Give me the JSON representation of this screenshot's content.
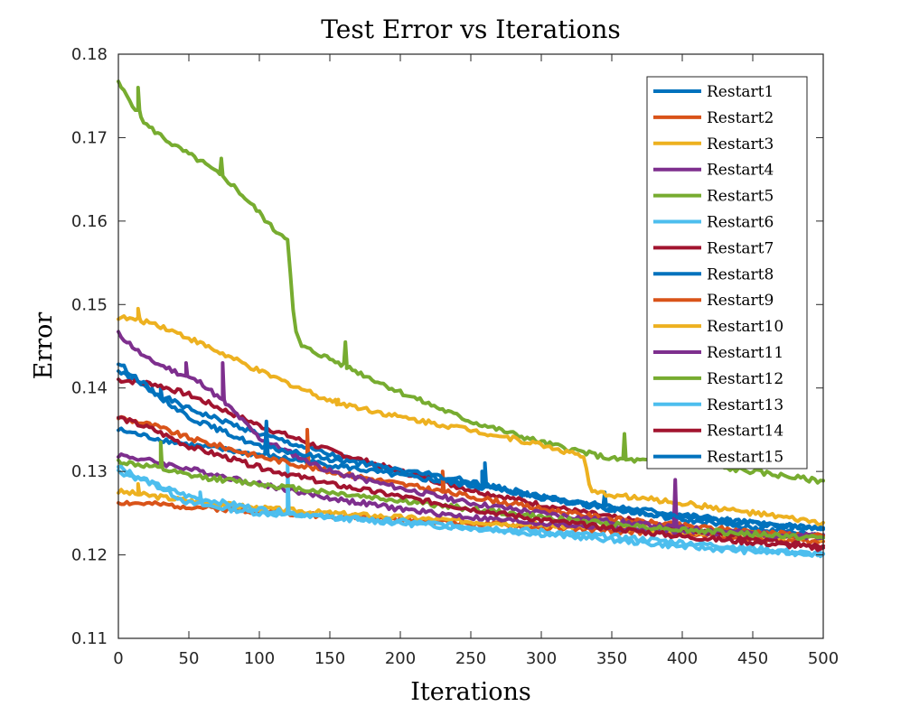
{
  "chart_data": {
    "type": "line",
    "title": "Test Error vs Iterations",
    "xlabel": "Iterations",
    "ylabel": "Error",
    "xlim": [
      0,
      500
    ],
    "ylim": [
      0.11,
      0.18
    ],
    "xticks": [
      0,
      50,
      100,
      150,
      200,
      250,
      300,
      350,
      400,
      450,
      500
    ],
    "yticks": [
      0.11,
      0.12,
      0.13,
      0.14,
      0.15,
      0.16,
      0.17,
      0.18
    ],
    "xtick_labels": [
      "0",
      "50",
      "100",
      "150",
      "200",
      "250",
      "300",
      "350",
      "400",
      "450",
      "500"
    ],
    "ytick_labels": [
      "0.11",
      "0.12",
      "0.13",
      "0.14",
      "0.15",
      "0.16",
      "0.17",
      "0.18"
    ],
    "grid": false,
    "legend_position": "top-right",
    "series": [
      {
        "name": "Restart1",
        "color": "#0072BD",
        "x": [
          0,
          25,
          50,
          100,
          150,
          200,
          250,
          300,
          350,
          400,
          450,
          500
        ],
        "y": [
          0.142,
          0.1395,
          0.1375,
          0.1345,
          0.132,
          0.13,
          0.1285,
          0.1268,
          0.1255,
          0.1242,
          0.1232,
          0.1223
        ],
        "spikes": [
          [
            30,
            0.14
          ],
          [
            260,
            0.131
          ]
        ]
      },
      {
        "name": "Restart2",
        "color": "#D95319",
        "x": [
          0,
          50,
          100,
          150,
          200,
          250,
          300,
          350,
          400,
          450,
          500
        ],
        "y": [
          0.1263,
          0.1258,
          0.1252,
          0.1247,
          0.1242,
          0.1238,
          0.1233,
          0.1229,
          0.1225,
          0.122,
          0.1215
        ]
      },
      {
        "name": "Restart3",
        "color": "#EDB120",
        "x": [
          0,
          50,
          100,
          150,
          200,
          250,
          300,
          350,
          400,
          450,
          500
        ],
        "y": [
          0.1276,
          0.1265,
          0.1256,
          0.125,
          0.1245,
          0.124,
          0.1236,
          0.1232,
          0.1228,
          0.1224,
          0.122
        ],
        "spikes": [
          [
            14,
            0.1285
          ]
        ]
      },
      {
        "name": "Restart4",
        "color": "#7E2F8E",
        "x": [
          0,
          25,
          50,
          100,
          150,
          200,
          250,
          300,
          350,
          400,
          450,
          500
        ],
        "y": [
          0.132,
          0.1312,
          0.1303,
          0.1285,
          0.1268,
          0.1255,
          0.1245,
          0.1238,
          0.1232,
          0.1228,
          0.1225,
          0.1223
        ]
      },
      {
        "name": "Restart5",
        "color": "#77AC30",
        "x": [
          0,
          10,
          20,
          40,
          60,
          80,
          100,
          110,
          120,
          125,
          130,
          150,
          200,
          250,
          300,
          350,
          400,
          450,
          500
        ],
        "y": [
          0.1765,
          0.174,
          0.1715,
          0.169,
          0.167,
          0.1645,
          0.161,
          0.159,
          0.158,
          0.147,
          0.145,
          0.1435,
          0.1395,
          0.136,
          0.1335,
          0.1315,
          0.131,
          0.13,
          0.1288
        ],
        "spikes": [
          [
            14,
            0.176
          ],
          [
            73,
            0.1675
          ],
          [
            161,
            0.1455
          ],
          [
            359,
            0.1345
          ]
        ]
      },
      {
        "name": "Restart6",
        "color": "#4DBEEE",
        "x": [
          0,
          25,
          50,
          100,
          150,
          200,
          250,
          300,
          350,
          400,
          450,
          500
        ],
        "y": [
          0.13,
          0.1285,
          0.127,
          0.1255,
          0.1245,
          0.124,
          0.1234,
          0.1228,
          0.1222,
          0.1215,
          0.1208,
          0.12
        ],
        "spikes": [
          [
            120,
            0.131
          ]
        ]
      },
      {
        "name": "Restart7",
        "color": "#A2142F",
        "x": [
          0,
          25,
          50,
          100,
          150,
          200,
          250,
          300,
          350,
          400,
          450,
          500
        ],
        "y": [
          0.141,
          0.1405,
          0.1392,
          0.1355,
          0.1325,
          0.13,
          0.1278,
          0.126,
          0.1245,
          0.1232,
          0.122,
          0.121
        ]
      },
      {
        "name": "Restart8",
        "color": "#0072BD",
        "x": [
          0,
          25,
          50,
          100,
          150,
          200,
          250,
          300,
          350,
          400,
          450,
          500
        ],
        "y": [
          0.135,
          0.134,
          0.1332,
          0.132,
          0.1308,
          0.1295,
          0.1283,
          0.127,
          0.1258,
          0.1248,
          0.1238,
          0.123
        ],
        "spikes": [
          [
            105,
            0.136
          ],
          [
            345,
            0.1275
          ]
        ]
      },
      {
        "name": "Restart9",
        "color": "#D95319",
        "x": [
          0,
          25,
          50,
          100,
          150,
          200,
          250,
          300,
          350,
          400,
          450,
          500
        ],
        "y": [
          0.1365,
          0.1355,
          0.134,
          0.1318,
          0.13,
          0.1285,
          0.127,
          0.1255,
          0.1243,
          0.1235,
          0.1228,
          0.1222
        ],
        "spikes": [
          [
            134,
            0.135
          ],
          [
            230,
            0.13
          ]
        ]
      },
      {
        "name": "Restart10",
        "color": "#EDB120",
        "x": [
          0,
          25,
          50,
          100,
          150,
          200,
          250,
          300,
          330,
          335,
          400,
          450,
          500
        ],
        "y": [
          0.1485,
          0.1478,
          0.146,
          0.142,
          0.1385,
          0.1365,
          0.135,
          0.1332,
          0.1318,
          0.1275,
          0.1262,
          0.125,
          0.1238
        ],
        "spikes": [
          [
            14,
            0.1495
          ],
          [
            155,
            0.138
          ]
        ]
      },
      {
        "name": "Restart11",
        "color": "#7E2F8E",
        "x": [
          0,
          10,
          20,
          40,
          60,
          80,
          100,
          150,
          200,
          250,
          300,
          350,
          400,
          450,
          500
        ],
        "y": [
          0.1465,
          0.145,
          0.1435,
          0.142,
          0.1405,
          0.1375,
          0.134,
          0.13,
          0.128,
          0.1262,
          0.125,
          0.124,
          0.1232,
          0.1226,
          0.122
        ],
        "spikes": [
          [
            48,
            0.143
          ],
          [
            74,
            0.143
          ],
          [
            395,
            0.129
          ]
        ]
      },
      {
        "name": "Restart12",
        "color": "#77AC30",
        "x": [
          0,
          25,
          50,
          100,
          150,
          200,
          250,
          300,
          350,
          400,
          450,
          500
        ],
        "y": [
          0.1312,
          0.1305,
          0.1295,
          0.1285,
          0.1275,
          0.1265,
          0.1255,
          0.1245,
          0.1237,
          0.123,
          0.1225,
          0.122
        ],
        "spikes": [
          [
            30,
            0.1335
          ]
        ]
      },
      {
        "name": "Restart13",
        "color": "#4DBEEE",
        "x": [
          0,
          25,
          50,
          100,
          150,
          200,
          250,
          300,
          350,
          400,
          450,
          500
        ],
        "y": [
          0.1305,
          0.1285,
          0.1262,
          0.125,
          0.1245,
          0.1238,
          0.1232,
          0.1225,
          0.1218,
          0.121,
          0.1204,
          0.1201
        ],
        "spikes": [
          [
            58,
            0.1275
          ]
        ]
      },
      {
        "name": "Restart14",
        "color": "#A2142F",
        "x": [
          0,
          25,
          50,
          100,
          150,
          200,
          250,
          300,
          350,
          400,
          450,
          500
        ],
        "y": [
          0.1365,
          0.135,
          0.133,
          0.1305,
          0.1285,
          0.127,
          0.1255,
          0.1242,
          0.1232,
          0.1222,
          0.1215,
          0.1208
        ]
      },
      {
        "name": "Restart15",
        "color": "#0072BD",
        "x": [
          0,
          25,
          50,
          100,
          150,
          200,
          250,
          300,
          350,
          400,
          450,
          500
        ],
        "y": [
          0.143,
          0.1395,
          0.1365,
          0.133,
          0.1315,
          0.1302,
          0.1288,
          0.127,
          0.1255,
          0.1245,
          0.1238,
          0.1232
        ],
        "spikes": [
          [
            105,
            0.1345
          ],
          [
            258,
            0.13
          ]
        ]
      }
    ]
  }
}
